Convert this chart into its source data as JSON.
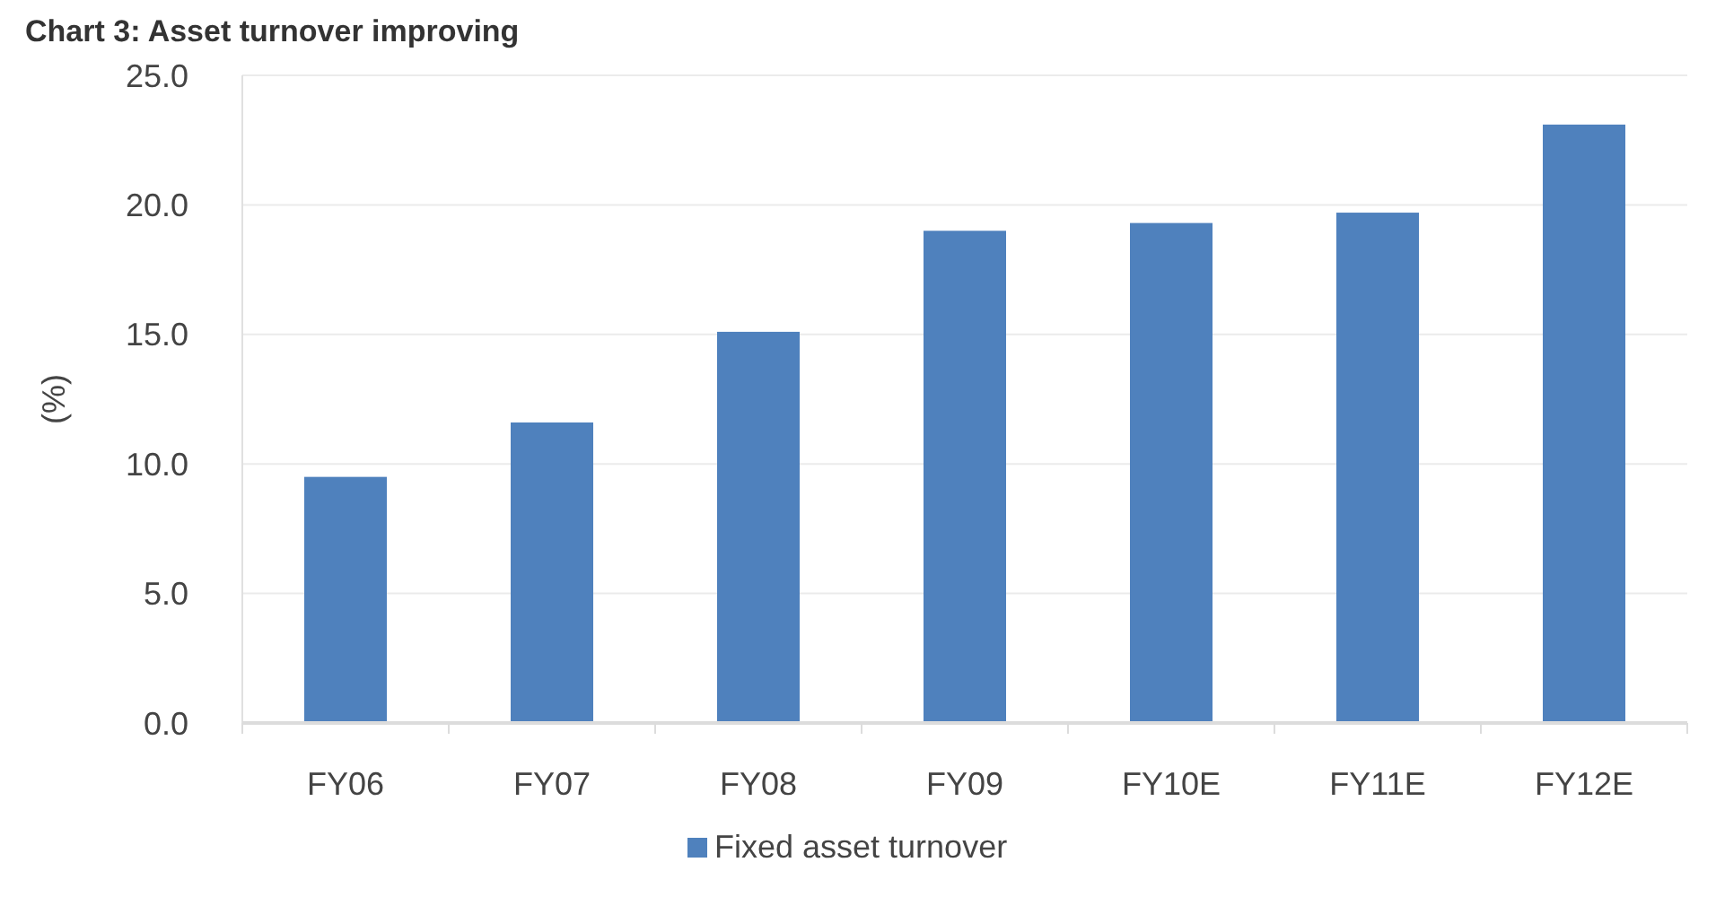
{
  "chart_data": {
    "type": "bar",
    "title": "Chart 3: Asset turnover improving",
    "ylabel": "(%)",
    "categories": [
      "FY06",
      "FY07",
      "FY08",
      "FY09",
      "FY10E",
      "FY11E",
      "FY12E"
    ],
    "series": [
      {
        "name": "Fixed asset turnover",
        "color": "#4f81bd",
        "values": [
          9.5,
          11.6,
          15.1,
          19.0,
          19.3,
          19.7,
          23.1
        ]
      }
    ],
    "ylim": [
      0,
      25
    ],
    "yticks": [
      {
        "value": 0,
        "label": "0.0"
      },
      {
        "value": 5,
        "label": "5.0"
      },
      {
        "value": 10,
        "label": "10.0"
      },
      {
        "value": 15,
        "label": "15.0"
      },
      {
        "value": 20,
        "label": "20.0"
      },
      {
        "value": 25,
        "label": "25.0"
      }
    ],
    "grid": "y",
    "legend": "bottom"
  }
}
